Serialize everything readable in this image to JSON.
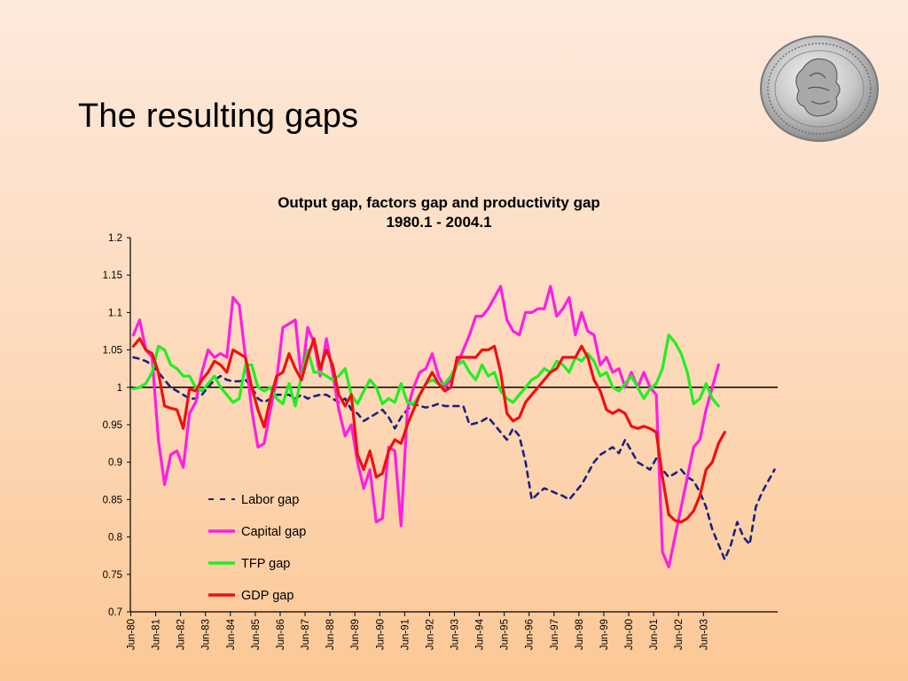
{
  "slide": {
    "title": "The resulting gaps"
  },
  "logo": {
    "icon": "coin-seal-icon"
  },
  "chart_data": {
    "type": "line",
    "title": "Output gap, factors gap and productivity gap",
    "subtitle": "1980.1 - 2004.1",
    "xlabel": "",
    "ylabel": "",
    "ylim": [
      0.7,
      1.2
    ],
    "yticks": [
      "0.7",
      "0.75",
      "0.8",
      "0.85",
      "0.9",
      "0.95",
      "1",
      "1.05",
      "1.1",
      "1.15",
      "1.2"
    ],
    "xticks": [
      "Jun-80",
      "Jun-81",
      "Jun-82",
      "Jun-83",
      "Jun-84",
      "Jun-85",
      "Jun-86",
      "Jun-87",
      "Jun-88",
      "Jun-89",
      "Jun-90",
      "Jun-91",
      "Jun-92",
      "Jun-93",
      "Jun-94",
      "Jun-95",
      "Jun-96",
      "Jun-97",
      "Jun-98",
      "Jun-99",
      "Jun-00",
      "Jun-01",
      "Jun-02",
      "Jun-03"
    ],
    "x_start": "1980-Q1",
    "reference_line": 1,
    "legend_position": "lower-left inside plot",
    "series": [
      {
        "name": "Labor gap",
        "color": "#1a237e",
        "dashed": true,
        "values": [
          1.04,
          1.038,
          1.035,
          1.03,
          1.02,
          1.01,
          1.0,
          0.995,
          0.99,
          0.985,
          0.985,
          0.99,
          1.0,
          1.01,
          1.015,
          1.01,
          1.008,
          1.008,
          1.01,
          1.0,
          0.985,
          0.98,
          0.985,
          0.99,
          0.99,
          0.99,
          0.985,
          0.99,
          0.985,
          0.988,
          0.99,
          0.99,
          0.985,
          0.98,
          0.985,
          0.97,
          0.965,
          0.955,
          0.96,
          0.965,
          0.97,
          0.96,
          0.945,
          0.96,
          0.97,
          0.978,
          0.975,
          0.973,
          0.975,
          0.978,
          0.975,
          0.975,
          0.975,
          0.975,
          0.95,
          0.952,
          0.955,
          0.96,
          0.95,
          0.94,
          0.93,
          0.945,
          0.935,
          0.9,
          0.85,
          0.858,
          0.865,
          0.862,
          0.858,
          0.855,
          0.85,
          0.86,
          0.87,
          0.885,
          0.9,
          0.91,
          0.915,
          0.92,
          0.912,
          0.93,
          0.915,
          0.9,
          0.895,
          0.89,
          0.905,
          0.89,
          0.88,
          0.885,
          0.89,
          0.88,
          0.875,
          0.86,
          0.84,
          0.81,
          0.79,
          0.77,
          0.79,
          0.82,
          0.8,
          0.79,
          0.84,
          0.86,
          0.875,
          0.89
        ]
      },
      {
        "name": "Capital gap",
        "color": "#ff1ee0",
        "dashed": false,
        "values": [
          1.07,
          1.09,
          1.05,
          1.04,
          0.93,
          0.87,
          0.91,
          0.915,
          0.893,
          0.965,
          0.98,
          1.02,
          1.05,
          1.04,
          1.045,
          1.04,
          1.12,
          1.11,
          1.04,
          0.97,
          0.92,
          0.925,
          0.97,
          1.01,
          1.08,
          1.085,
          1.09,
          1.01,
          1.08,
          1.06,
          1.015,
          1.065,
          1.02,
          0.97,
          0.935,
          0.95,
          0.9,
          0.865,
          0.89,
          0.82,
          0.825,
          0.92,
          0.915,
          0.815,
          0.97,
          1.0,
          1.02,
          1.025,
          1.045,
          1.015,
          1.0,
          1.01,
          1.03,
          1.05,
          1.07,
          1.095,
          1.095,
          1.105,
          1.12,
          1.135,
          1.09,
          1.075,
          1.07,
          1.1,
          1.1,
          1.105,
          1.105,
          1.135,
          1.095,
          1.105,
          1.12,
          1.07,
          1.1,
          1.075,
          1.07,
          1.03,
          1.04,
          1.02,
          1.025,
          1.0,
          1.02,
          1.0,
          1.02,
          1.0,
          0.99,
          0.78,
          0.76,
          0.8,
          0.84,
          0.88,
          0.92,
          0.93,
          0.97,
          1.0,
          1.03
        ]
      },
      {
        "name": "TFP gap",
        "color": "#22ee22",
        "dashed": false,
        "values": [
          0.998,
          1.0,
          1.005,
          1.02,
          1.055,
          1.05,
          1.03,
          1.025,
          1.015,
          1.015,
          1.0,
          0.995,
          1.005,
          1.015,
          1.0,
          0.99,
          0.98,
          0.985,
          1.03,
          1.03,
          1.0,
          0.995,
          1.0,
          0.985,
          0.978,
          1.005,
          0.975,
          1.015,
          1.05,
          1.02,
          1.02,
          1.015,
          1.01,
          1.015,
          1.025,
          0.99,
          0.978,
          0.995,
          1.01,
          1.0,
          0.978,
          0.985,
          0.98,
          1.005,
          0.98,
          0.978,
          0.99,
          1.005,
          1.01,
          1.005,
          1.005,
          1.015,
          1.03,
          1.035,
          1.02,
          1.01,
          1.03,
          1.015,
          1.02,
          0.995,
          0.985,
          0.98,
          0.99,
          1.0,
          1.01,
          1.015,
          1.025,
          1.02,
          1.035,
          1.03,
          1.02,
          1.04,
          1.035,
          1.045,
          1.035,
          1.015,
          1.02,
          1.0,
          0.995,
          1.005,
          1.015,
          1.0,
          0.985,
          0.998,
          1.005,
          1.025,
          1.07,
          1.06,
          1.045,
          1.02,
          0.978,
          0.985,
          1.005,
          0.985,
          0.975
        ]
      },
      {
        "name": "GDP gap",
        "color": "#ee1111",
        "dashed": false,
        "values": [
          1.055,
          1.065,
          1.05,
          1.045,
          1.02,
          0.975,
          0.972,
          0.97,
          0.945,
          0.998,
          0.995,
          1.01,
          1.02,
          1.035,
          1.03,
          1.02,
          1.05,
          1.045,
          1.04,
          1.0,
          0.97,
          0.947,
          0.985,
          1.015,
          1.02,
          1.045,
          1.025,
          1.01,
          1.04,
          1.065,
          1.025,
          1.05,
          1.03,
          0.99,
          0.975,
          0.99,
          0.91,
          0.89,
          0.915,
          0.88,
          0.885,
          0.915,
          0.93,
          0.925,
          0.95,
          0.97,
          0.99,
          1.005,
          1.02,
          1.005,
          0.995,
          1.0,
          1.04,
          1.04,
          1.04,
          1.04,
          1.05,
          1.05,
          1.055,
          1.02,
          0.965,
          0.955,
          0.96,
          0.98,
          0.99,
          1.0,
          1.01,
          1.02,
          1.025,
          1.04,
          1.04,
          1.04,
          1.055,
          1.04,
          1.01,
          0.995,
          0.97,
          0.965,
          0.97,
          0.965,
          0.948,
          0.945,
          0.948,
          0.945,
          0.94,
          0.88,
          0.83,
          0.822,
          0.82,
          0.825,
          0.835,
          0.855,
          0.89,
          0.9,
          0.925,
          0.94
        ]
      }
    ]
  }
}
